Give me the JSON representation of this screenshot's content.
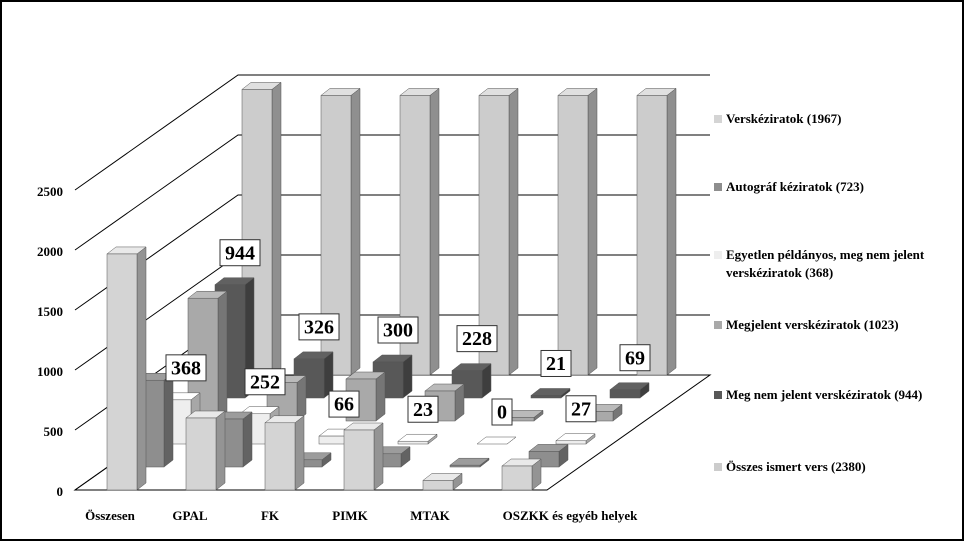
{
  "chart_data": {
    "type": "bar3d",
    "categories": [
      "Összesen",
      "GPAL",
      "FK",
      "PIMK",
      "MTAK",
      "OSZKK és egyéb helyek"
    ],
    "series": [
      {
        "name": "Verskéziratok (1967)",
        "color": "#d4d4d4",
        "values": [
          1967,
          600,
          560,
          500,
          80,
          200
        ]
      },
      {
        "name": "Autográf kéziratok (723)",
        "color": "#8e8e8e",
        "values": [
          723,
          400,
          60,
          110,
          15,
          130
        ]
      },
      {
        "name": "Egyetlen példányos, meg nem jelent verskéziratok (368)",
        "color": "#eeeeee",
        "values": [
          368,
          252,
          66,
          23,
          0,
          27
        ],
        "data_labels": true
      },
      {
        "name": "Megjelent verskéziratok (1023)",
        "color": "#a9a9a9",
        "values": [
          1023,
          320,
          350,
          250,
          30,
          80
        ]
      },
      {
        "name": "Meg nem jelent verskéziratok (944)",
        "color": "#585858",
        "values": [
          944,
          326,
          300,
          228,
          21,
          69
        ],
        "data_labels": true
      },
      {
        "name": "Összes ismert vers (2380)",
        "color": "#cccccc",
        "values": [
          2380,
          2330,
          2330,
          2330,
          2330,
          2330
        ]
      }
    ],
    "ylim": [
      0,
      2500
    ],
    "yticks": [
      0,
      500,
      1000,
      1500,
      2000,
      2500
    ],
    "grid": true
  }
}
